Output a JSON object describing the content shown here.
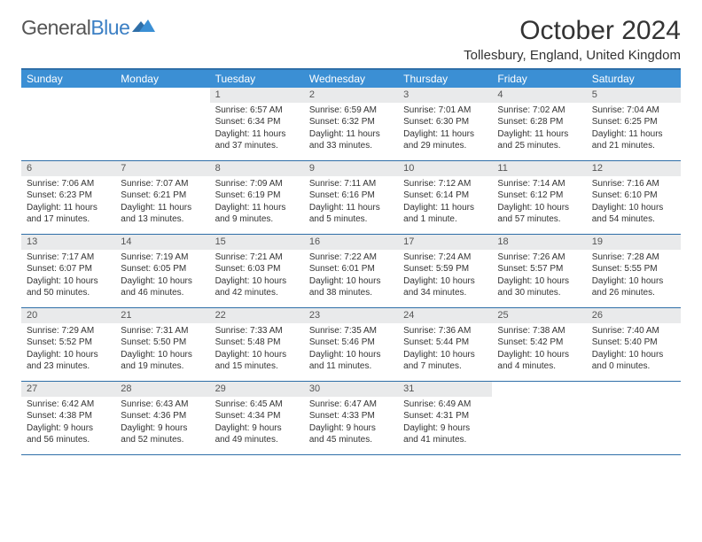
{
  "logo": {
    "word1": "General",
    "word2": "Blue"
  },
  "title": "October 2024",
  "location": "Tollesbury, England, United Kingdom",
  "colors": {
    "header_bg": "#3b8fd4",
    "border": "#2f6fa8",
    "daynum_bg": "#e9eaeb",
    "text": "#333333",
    "logo_gray": "#555555",
    "logo_blue": "#3b7fc4"
  },
  "dayNames": [
    "Sunday",
    "Monday",
    "Tuesday",
    "Wednesday",
    "Thursday",
    "Friday",
    "Saturday"
  ],
  "weeks": [
    [
      null,
      null,
      {
        "n": "1",
        "sr": "6:57 AM",
        "ss": "6:34 PM",
        "dl": "11 hours and 37 minutes."
      },
      {
        "n": "2",
        "sr": "6:59 AM",
        "ss": "6:32 PM",
        "dl": "11 hours and 33 minutes."
      },
      {
        "n": "3",
        "sr": "7:01 AM",
        "ss": "6:30 PM",
        "dl": "11 hours and 29 minutes."
      },
      {
        "n": "4",
        "sr": "7:02 AM",
        "ss": "6:28 PM",
        "dl": "11 hours and 25 minutes."
      },
      {
        "n": "5",
        "sr": "7:04 AM",
        "ss": "6:25 PM",
        "dl": "11 hours and 21 minutes."
      }
    ],
    [
      {
        "n": "6",
        "sr": "7:06 AM",
        "ss": "6:23 PM",
        "dl": "11 hours and 17 minutes."
      },
      {
        "n": "7",
        "sr": "7:07 AM",
        "ss": "6:21 PM",
        "dl": "11 hours and 13 minutes."
      },
      {
        "n": "8",
        "sr": "7:09 AM",
        "ss": "6:19 PM",
        "dl": "11 hours and 9 minutes."
      },
      {
        "n": "9",
        "sr": "7:11 AM",
        "ss": "6:16 PM",
        "dl": "11 hours and 5 minutes."
      },
      {
        "n": "10",
        "sr": "7:12 AM",
        "ss": "6:14 PM",
        "dl": "11 hours and 1 minute."
      },
      {
        "n": "11",
        "sr": "7:14 AM",
        "ss": "6:12 PM",
        "dl": "10 hours and 57 minutes."
      },
      {
        "n": "12",
        "sr": "7:16 AM",
        "ss": "6:10 PM",
        "dl": "10 hours and 54 minutes."
      }
    ],
    [
      {
        "n": "13",
        "sr": "7:17 AM",
        "ss": "6:07 PM",
        "dl": "10 hours and 50 minutes."
      },
      {
        "n": "14",
        "sr": "7:19 AM",
        "ss": "6:05 PM",
        "dl": "10 hours and 46 minutes."
      },
      {
        "n": "15",
        "sr": "7:21 AM",
        "ss": "6:03 PM",
        "dl": "10 hours and 42 minutes."
      },
      {
        "n": "16",
        "sr": "7:22 AM",
        "ss": "6:01 PM",
        "dl": "10 hours and 38 minutes."
      },
      {
        "n": "17",
        "sr": "7:24 AM",
        "ss": "5:59 PM",
        "dl": "10 hours and 34 minutes."
      },
      {
        "n": "18",
        "sr": "7:26 AM",
        "ss": "5:57 PM",
        "dl": "10 hours and 30 minutes."
      },
      {
        "n": "19",
        "sr": "7:28 AM",
        "ss": "5:55 PM",
        "dl": "10 hours and 26 minutes."
      }
    ],
    [
      {
        "n": "20",
        "sr": "7:29 AM",
        "ss": "5:52 PM",
        "dl": "10 hours and 23 minutes."
      },
      {
        "n": "21",
        "sr": "7:31 AM",
        "ss": "5:50 PM",
        "dl": "10 hours and 19 minutes."
      },
      {
        "n": "22",
        "sr": "7:33 AM",
        "ss": "5:48 PM",
        "dl": "10 hours and 15 minutes."
      },
      {
        "n": "23",
        "sr": "7:35 AM",
        "ss": "5:46 PM",
        "dl": "10 hours and 11 minutes."
      },
      {
        "n": "24",
        "sr": "7:36 AM",
        "ss": "5:44 PM",
        "dl": "10 hours and 7 minutes."
      },
      {
        "n": "25",
        "sr": "7:38 AM",
        "ss": "5:42 PM",
        "dl": "10 hours and 4 minutes."
      },
      {
        "n": "26",
        "sr": "7:40 AM",
        "ss": "5:40 PM",
        "dl": "10 hours and 0 minutes."
      }
    ],
    [
      {
        "n": "27",
        "sr": "6:42 AM",
        "ss": "4:38 PM",
        "dl": "9 hours and 56 minutes."
      },
      {
        "n": "28",
        "sr": "6:43 AM",
        "ss": "4:36 PM",
        "dl": "9 hours and 52 minutes."
      },
      {
        "n": "29",
        "sr": "6:45 AM",
        "ss": "4:34 PM",
        "dl": "9 hours and 49 minutes."
      },
      {
        "n": "30",
        "sr": "6:47 AM",
        "ss": "4:33 PM",
        "dl": "9 hours and 45 minutes."
      },
      {
        "n": "31",
        "sr": "6:49 AM",
        "ss": "4:31 PM",
        "dl": "9 hours and 41 minutes."
      },
      null,
      null
    ]
  ],
  "labels": {
    "sunrise": "Sunrise: ",
    "sunset": "Sunset: ",
    "daylight": "Daylight: "
  }
}
